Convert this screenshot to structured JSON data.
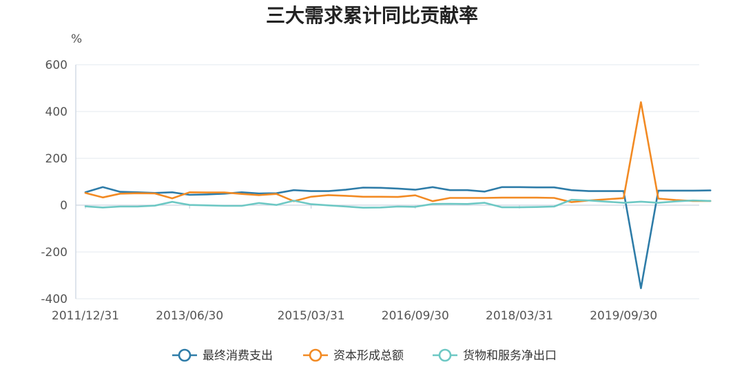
{
  "chart_data": {
    "type": "line",
    "title": "三大需求累计同比贡献率",
    "y_unit": "%",
    "ylim": [
      -400,
      600
    ],
    "yticks": [
      "600",
      "400",
      "200",
      "0",
      "-200",
      "-400"
    ],
    "x_tick_labels": [
      "2011/12/31",
      "2013/06/30",
      "2015/03/31",
      "2016/09/30",
      "2018/03/31",
      "2019/09/30"
    ],
    "x": [
      "2011/12/31",
      "2012/03/31",
      "2012/06/30",
      "2012/09/30",
      "2012/12/31",
      "2013/03/31",
      "2013/06/30",
      "2013/09/30",
      "2013/12/31",
      "2014/03/31",
      "2014/06/30",
      "2014/09/30",
      "2014/12/31",
      "2015/03/31",
      "2015/06/30",
      "2015/09/30",
      "2015/12/31",
      "2016/03/31",
      "2016/06/30",
      "2016/09/30",
      "2016/12/31",
      "2017/03/31",
      "2017/06/30",
      "2017/09/30",
      "2017/12/31",
      "2018/03/31",
      "2018/06/30",
      "2018/09/30",
      "2018/12/31",
      "2019/03/31",
      "2019/06/30",
      "2019/09/30",
      "2019/12/31",
      "2020/03/31",
      "2020/06/30",
      "2020/09/30",
      "2020/12/31"
    ],
    "grid": true,
    "legend_position": "bottom",
    "series": [
      {
        "name": "最终消费支出",
        "color": "#2e7ca8",
        "values": [
          55,
          77,
          57,
          55,
          52,
          55,
          44,
          46,
          49,
          55,
          50,
          51,
          64,
          60,
          60,
          66,
          75,
          74,
          71,
          66,
          77,
          64,
          64,
          58,
          77,
          77,
          76,
          76,
          64,
          60,
          60,
          60,
          -355,
          62,
          62,
          62,
          63
        ]
      },
      {
        "name": "资本形成总额",
        "color": "#f28a23",
        "values": [
          52,
          33,
          49,
          51,
          50,
          29,
          55,
          54,
          54,
          48,
          43,
          48,
          17,
          36,
          43,
          40,
          36,
          36,
          35,
          42,
          17,
          31,
          31,
          31,
          32,
          32,
          32,
          31,
          13,
          20,
          25,
          30,
          440,
          28,
          22,
          18,
          18
        ]
      },
      {
        "name": "货物和服务净出口",
        "color": "#6dc8c4",
        "values": [
          -5,
          -10,
          -6,
          -6,
          -2,
          14,
          1,
          -1,
          -3,
          -3,
          9,
          1,
          19,
          4,
          -1,
          -6,
          -11,
          -10,
          -6,
          -7,
          5,
          6,
          5,
          10,
          -9,
          -9,
          -8,
          -6,
          23,
          20,
          15,
          10,
          15,
          10,
          16,
          20,
          18
        ]
      }
    ]
  }
}
